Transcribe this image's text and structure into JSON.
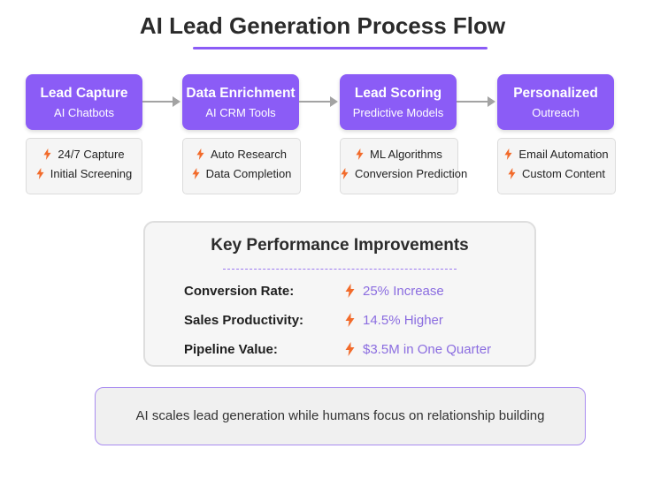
{
  "title": "AI Lead Generation Process Flow",
  "stages": [
    {
      "title": "Lead Capture",
      "subtitle": "AI Chatbots",
      "features": [
        "24/7 Capture",
        "Initial Screening"
      ]
    },
    {
      "title": "Data Enrichment",
      "subtitle": "AI CRM Tools",
      "features": [
        "Auto Research",
        "Data Completion"
      ]
    },
    {
      "title": "Lead Scoring",
      "subtitle": "Predictive Models",
      "features": [
        "ML Algorithms",
        "Conversion Prediction"
      ]
    },
    {
      "title": "Personalized",
      "subtitle": "Outreach",
      "features": [
        "Email Automation",
        "Custom Content"
      ]
    }
  ],
  "kpi": {
    "title": "Key Performance Improvements",
    "rows": [
      {
        "label": "Conversion Rate:",
        "value": "25% Increase"
      },
      {
        "label": "Sales Productivity:",
        "value": "14.5% Higher"
      },
      {
        "label": "Pipeline Value:",
        "value": "$3.5M in One Quarter"
      }
    ]
  },
  "note": "AI scales lead generation while humans focus on relationship building",
  "colors": {
    "accent": "#8b5cf6",
    "bolt": "#f26b2b",
    "kpi_value": "#8b6de0",
    "arrow": "#a3a3a3"
  },
  "icons": {
    "feature_bullet": "lightning-bolt-icon"
  }
}
